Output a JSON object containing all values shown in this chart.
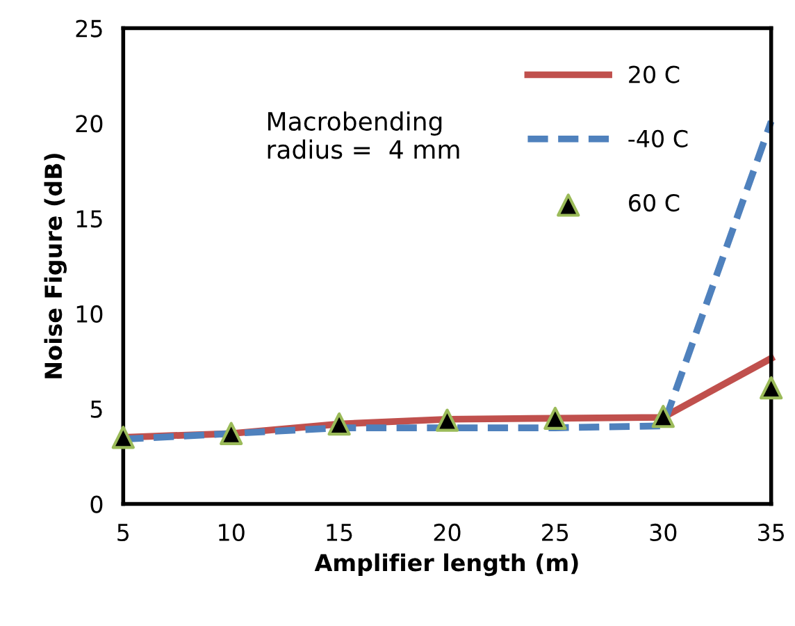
{
  "chart_data": {
    "type": "line",
    "xlabel": "Amplifier length (m)",
    "ylabel": "Noise Figure (dB)",
    "x": [
      5,
      10,
      15,
      20,
      25,
      30,
      35
    ],
    "xlim": [
      5,
      35
    ],
    "xticks": [
      5,
      10,
      15,
      20,
      25,
      30,
      35
    ],
    "ylim": [
      0,
      25
    ],
    "yticks": [
      0,
      5,
      10,
      15,
      20,
      25
    ],
    "grid": false,
    "legend": "top right",
    "annotations": [
      "Macrobending\nradius =  4 mm"
    ],
    "series": [
      {
        "name": "20 C",
        "color": "#c0504d",
        "line_style": "solid",
        "marker": "none",
        "values": [
          3.5,
          3.7,
          4.2,
          4.45,
          4.5,
          4.55,
          7.65
        ]
      },
      {
        "name": "-40 C",
        "color": "#4f81bd",
        "line_style": "dashed",
        "marker": "none",
        "values": [
          3.4,
          3.7,
          4.0,
          4.0,
          4.0,
          4.1,
          20.1
        ]
      },
      {
        "name": "60 C",
        "type": "scatter",
        "color": "#000000",
        "marker": "triangle",
        "values": [
          3.5,
          3.7,
          4.2,
          4.4,
          4.5,
          4.6,
          6.1
        ]
      }
    ]
  }
}
